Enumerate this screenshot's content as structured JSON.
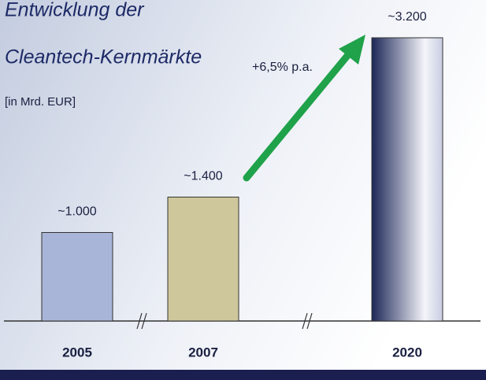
{
  "chart_data": {
    "type": "bar",
    "title": [
      "Entwicklung der",
      "Cleantech-Kernmärkte"
    ],
    "subtitle": "[in Mrd. EUR]",
    "annotation": "+6,5% p.a.",
    "categories": [
      "2005",
      "2007",
      "2020"
    ],
    "values": [
      1000,
      1400,
      3200
    ],
    "value_labels": [
      "~1.000",
      "~1.400",
      "~3.200"
    ],
    "colors": [
      "#a9b5d8",
      "#cdc79b",
      "#1c2757"
    ],
    "ylim": [
      0,
      3200
    ]
  }
}
